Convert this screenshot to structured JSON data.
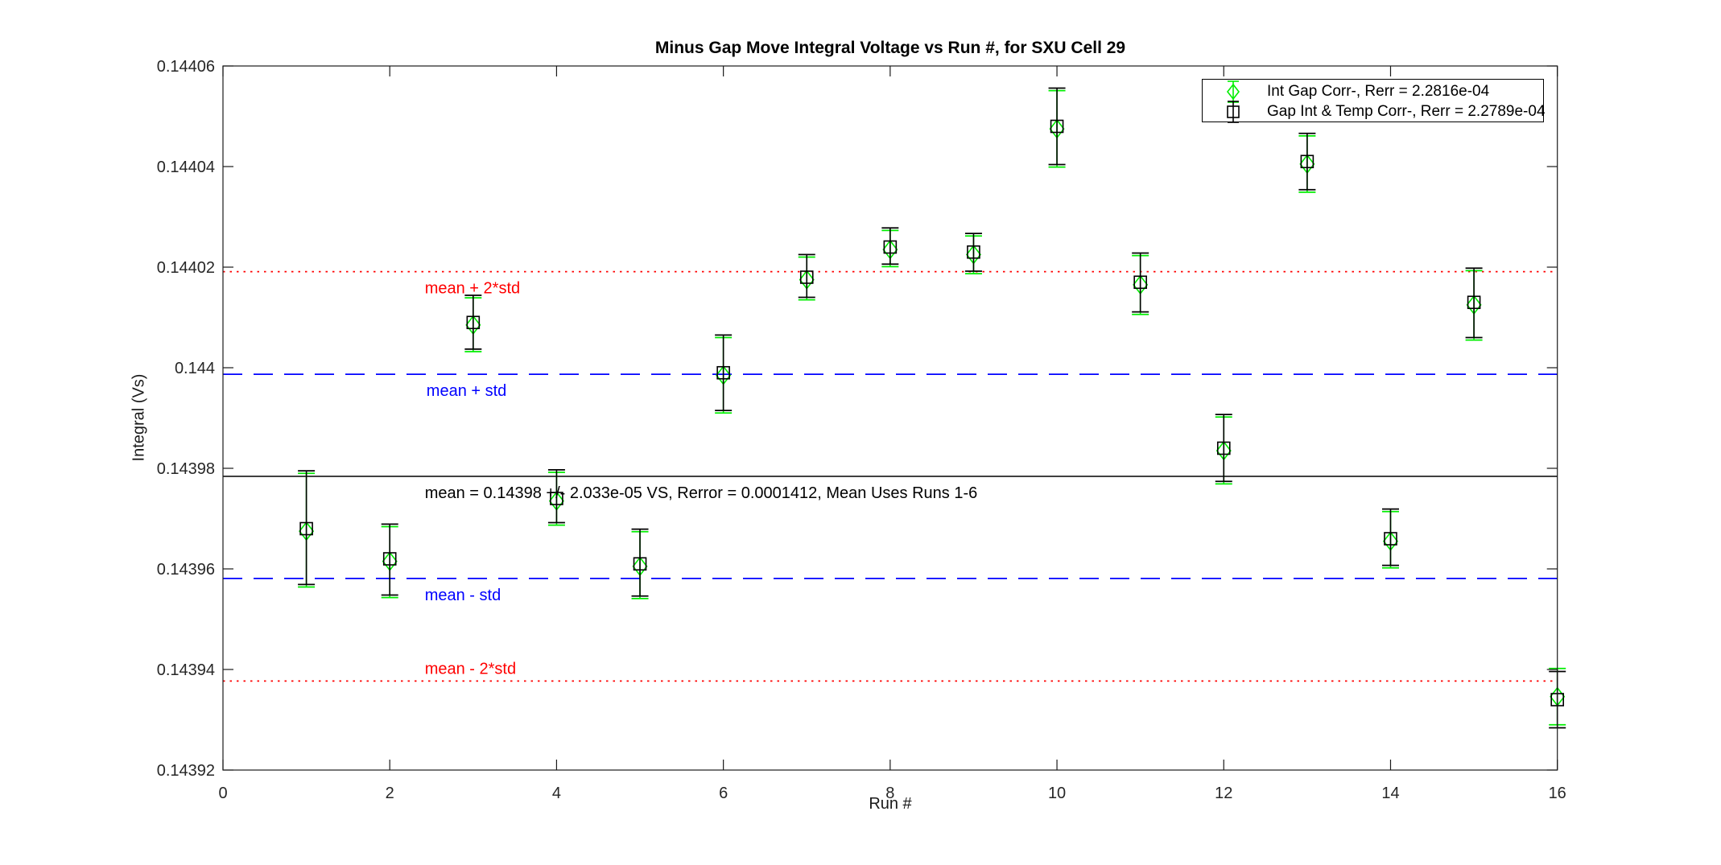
{
  "figure": {
    "background": "#ffffff"
  },
  "chart_data": {
    "type": "scatter",
    "title": "Minus Gap Move Integral Voltage vs Run #, for SXU Cell 29",
    "xlabel": "Run #",
    "ylabel": "Integral (Vs)",
    "xlim": [
      0,
      16
    ],
    "ylim": [
      0.14392,
      0.14406
    ],
    "grid": false,
    "legend_position": "top-right",
    "x_ticks": [
      0,
      2,
      4,
      6,
      8,
      10,
      12,
      14,
      16
    ],
    "y_ticks": [
      0.14392,
      0.14394,
      0.14396,
      0.14398,
      0.144,
      0.14402,
      0.14404,
      0.14406
    ],
    "y_tick_labels": [
      "0.14392",
      "0.14394",
      "0.14396",
      "0.14398",
      "0.144",
      "0.14402",
      "0.14404",
      "0.14406"
    ],
    "x": [
      1,
      2,
      3,
      4,
      5,
      6,
      7,
      8,
      9,
      10,
      11,
      12,
      13,
      14,
      15,
      16
    ],
    "series": [
      {
        "name": "Int Gap Corr-, Rerr = 2.2816e-04",
        "color": "#00ee00",
        "marker": "diamond",
        "values": [
          0.1439675,
          0.1439615,
          0.1440085,
          0.1439735,
          0.1439605,
          0.1439985,
          0.1440175,
          0.1440235,
          0.1440225,
          0.1440475,
          0.1440165,
          0.1439835,
          0.1440405,
          0.1439655,
          0.1440125,
          0.1439346
        ],
        "err_up": [
          1.15e-05,
          6.9e-06,
          5.4e-06,
          5.7e-06,
          6.9e-06,
          7.5e-06,
          4.5e-06,
          3.8e-06,
          3.7e-06,
          7.6e-06,
          5.8e-06,
          6.7e-06,
          5.6e-06,
          5.9e-06,
          6.8e-06,
          5.6e-06
        ],
        "err_down": [
          1.11e-05,
          7.2e-06,
          5.3e-06,
          4.8e-06,
          6.4e-06,
          7.5e-06,
          4e-06,
          3.4e-06,
          3.8e-06,
          7.6e-06,
          5.9e-06,
          6.6e-06,
          5.6e-06,
          5.3e-06,
          7e-06,
          5.6e-06
        ]
      },
      {
        "name": "Gap Int & Temp Corr-, Rerr = 2.2789e-04",
        "color": "#000000",
        "marker": "square",
        "values": [
          0.143968,
          0.143962,
          0.144009,
          0.143974,
          0.143961,
          0.143999,
          0.144018,
          0.144024,
          0.144023,
          0.144048,
          0.144017,
          0.143984,
          0.144041,
          0.143966,
          0.144013,
          0.143934
        ],
        "err_up": [
          1.15e-05,
          6.9e-06,
          5.4e-06,
          5.7e-06,
          6.9e-06,
          7.5e-06,
          4.5e-06,
          3.8e-06,
          3.7e-06,
          7.6e-06,
          5.8e-06,
          6.7e-06,
          5.6e-06,
          5.9e-06,
          6.8e-06,
          5.6e-06
        ],
        "err_down": [
          1.11e-05,
          7.2e-06,
          5.3e-06,
          4.8e-06,
          6.4e-06,
          7.5e-06,
          4e-06,
          3.4e-06,
          3.8e-06,
          7.6e-06,
          5.9e-06,
          6.6e-06,
          5.6e-06,
          5.3e-06,
          7e-06,
          5.6e-06
        ]
      }
    ],
    "ref_lines": [
      {
        "label": "mean + 2*std",
        "value": 0.1440191,
        "style": "dotted",
        "color": "#ff0000",
        "label_x": 2.42,
        "label_side": "below"
      },
      {
        "label": "mean + std",
        "value": 0.1439987,
        "style": "dashed",
        "color": "#0000ff",
        "label_x": 2.44,
        "label_side": "below"
      },
      {
        "label": "mean = 0.14398 +/- 2.033e-05 VS, Rerror = 0.0001412, Mean Uses Runs 1-6",
        "value": 0.1439784,
        "style": "solid",
        "color": "#000000",
        "label_x": 2.42,
        "label_side": "below"
      },
      {
        "label": "mean - std",
        "value": 0.1439581,
        "style": "dashed",
        "color": "#0000ff",
        "label_x": 2.42,
        "label_side": "below"
      },
      {
        "label": "mean - 2*std",
        "value": 0.1439377,
        "style": "dotted",
        "color": "#ff0000",
        "label_x": 2.42,
        "label_side": "above"
      }
    ],
    "annotation_mean_text": "mean = 0.14398 +/- 2.033e-05 VS, Rerror = 0.0001412, Mean Uses Runs 1-6"
  }
}
